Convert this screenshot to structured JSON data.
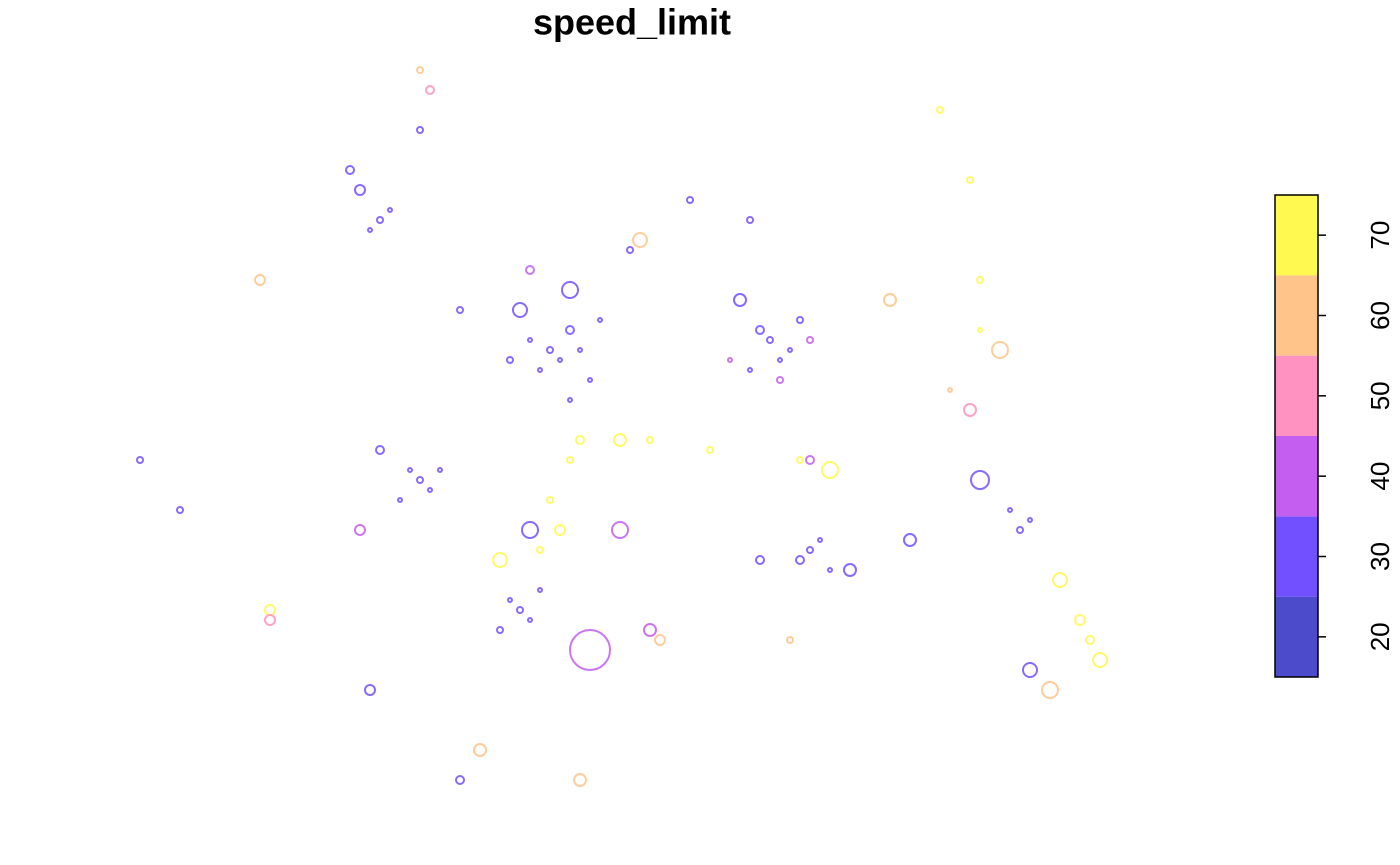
{
  "chart_data": {
    "type": "scatter",
    "title": "speed_limit",
    "xlim": [
      0,
      100
    ],
    "ylim": [
      0,
      73
    ],
    "x": [
      42,
      43,
      40,
      44,
      41,
      45,
      39,
      46,
      38,
      47,
      64,
      65,
      63,
      66,
      62,
      67,
      61,
      68,
      60,
      65,
      29,
      30,
      28,
      31,
      27,
      39,
      40,
      38,
      41,
      37,
      46,
      68,
      69,
      67,
      70,
      72,
      89,
      90,
      85,
      88,
      25,
      26,
      24,
      23,
      22,
      13,
      44,
      40,
      50,
      62,
      56,
      51,
      30,
      29,
      81,
      84,
      85,
      85,
      82,
      87,
      84,
      45,
      44,
      42,
      43,
      41,
      37,
      49,
      52,
      58,
      67,
      70,
      93,
      95,
      96,
      97,
      92,
      45,
      35,
      1,
      5,
      14,
      14,
      24,
      33,
      29,
      53,
      52,
      63,
      66,
      78,
      90,
      23,
      40,
      49,
      33,
      25,
      76,
      68,
      44
    ],
    "y": [
      45,
      44,
      46,
      47,
      43,
      45,
      49,
      42,
      44,
      48,
      46,
      44,
      47,
      45,
      43,
      48,
      50,
      46,
      44,
      42,
      32,
      31,
      33,
      33,
      30,
      19,
      18,
      20,
      21,
      17,
      15,
      25,
      26,
      24,
      23,
      23,
      27,
      28,
      32,
      29,
      58,
      59,
      57,
      61,
      63,
      52,
      51,
      53,
      55,
      58,
      60,
      56,
      71,
      73,
      69,
      62,
      52,
      47,
      41,
      45,
      39,
      36,
      34,
      30,
      27,
      25,
      24,
      36,
      36,
      35,
      34,
      33,
      22,
      18,
      16,
      14,
      11,
      2,
      5,
      34,
      29,
      19,
      18,
      11,
      2,
      67,
      16,
      17,
      24,
      16,
      26,
      13,
      27,
      27,
      27,
      49,
      35,
      50,
      34,
      40
    ],
    "values": [
      30,
      30,
      30,
      30,
      30,
      30,
      30,
      30,
      30,
      30,
      30,
      30,
      30,
      30,
      30,
      30,
      30,
      40,
      40,
      40,
      30,
      30,
      30,
      30,
      30,
      30,
      30,
      30,
      30,
      30,
      40,
      30,
      30,
      30,
      30,
      30,
      30,
      30,
      30,
      30,
      30,
      30,
      30,
      30,
      30,
      60,
      30,
      40,
      30,
      30,
      30,
      60,
      50,
      60,
      70,
      70,
      70,
      70,
      60,
      60,
      50,
      70,
      70,
      70,
      70,
      70,
      70,
      70,
      70,
      70,
      70,
      70,
      70,
      70,
      70,
      70,
      60,
      60,
      60,
      30,
      30,
      70,
      50,
      30,
      30,
      30,
      60,
      40,
      30,
      60,
      30,
      30,
      40,
      30,
      40,
      30,
      30,
      60,
      40,
      30
    ],
    "sizes": [
      3,
      2,
      2,
      4,
      2,
      2,
      7,
      2,
      3,
      2,
      3,
      2,
      4,
      2,
      2,
      3,
      6,
      3,
      2,
      3,
      3,
      2,
      2,
      2,
      2,
      3,
      2,
      2,
      2,
      3,
      20,
      3,
      2,
      4,
      2,
      6,
      3,
      2,
      9,
      2,
      3,
      2,
      2,
      5,
      4,
      5,
      8,
      4,
      3,
      3,
      3,
      7,
      4,
      3,
      3,
      3,
      3,
      2,
      2,
      8,
      6,
      4,
      3,
      3,
      5,
      3,
      7,
      6,
      3,
      3,
      3,
      8,
      7,
      5,
      4,
      7,
      8,
      6,
      6,
      3,
      3,
      5,
      5,
      5,
      4,
      3,
      5,
      6,
      4,
      3,
      6,
      7,
      5,
      8,
      8,
      3,
      4,
      6,
      4,
      2
    ],
    "legend": {
      "lim": [
        15,
        75
      ],
      "ticks": [
        20,
        30,
        40,
        50,
        60,
        70
      ],
      "colors": [
        "#4b4bcb",
        "#7350ff",
        "#c35ef0",
        "#ff92c0",
        "#ffc48a",
        "#fff950"
      ]
    }
  }
}
